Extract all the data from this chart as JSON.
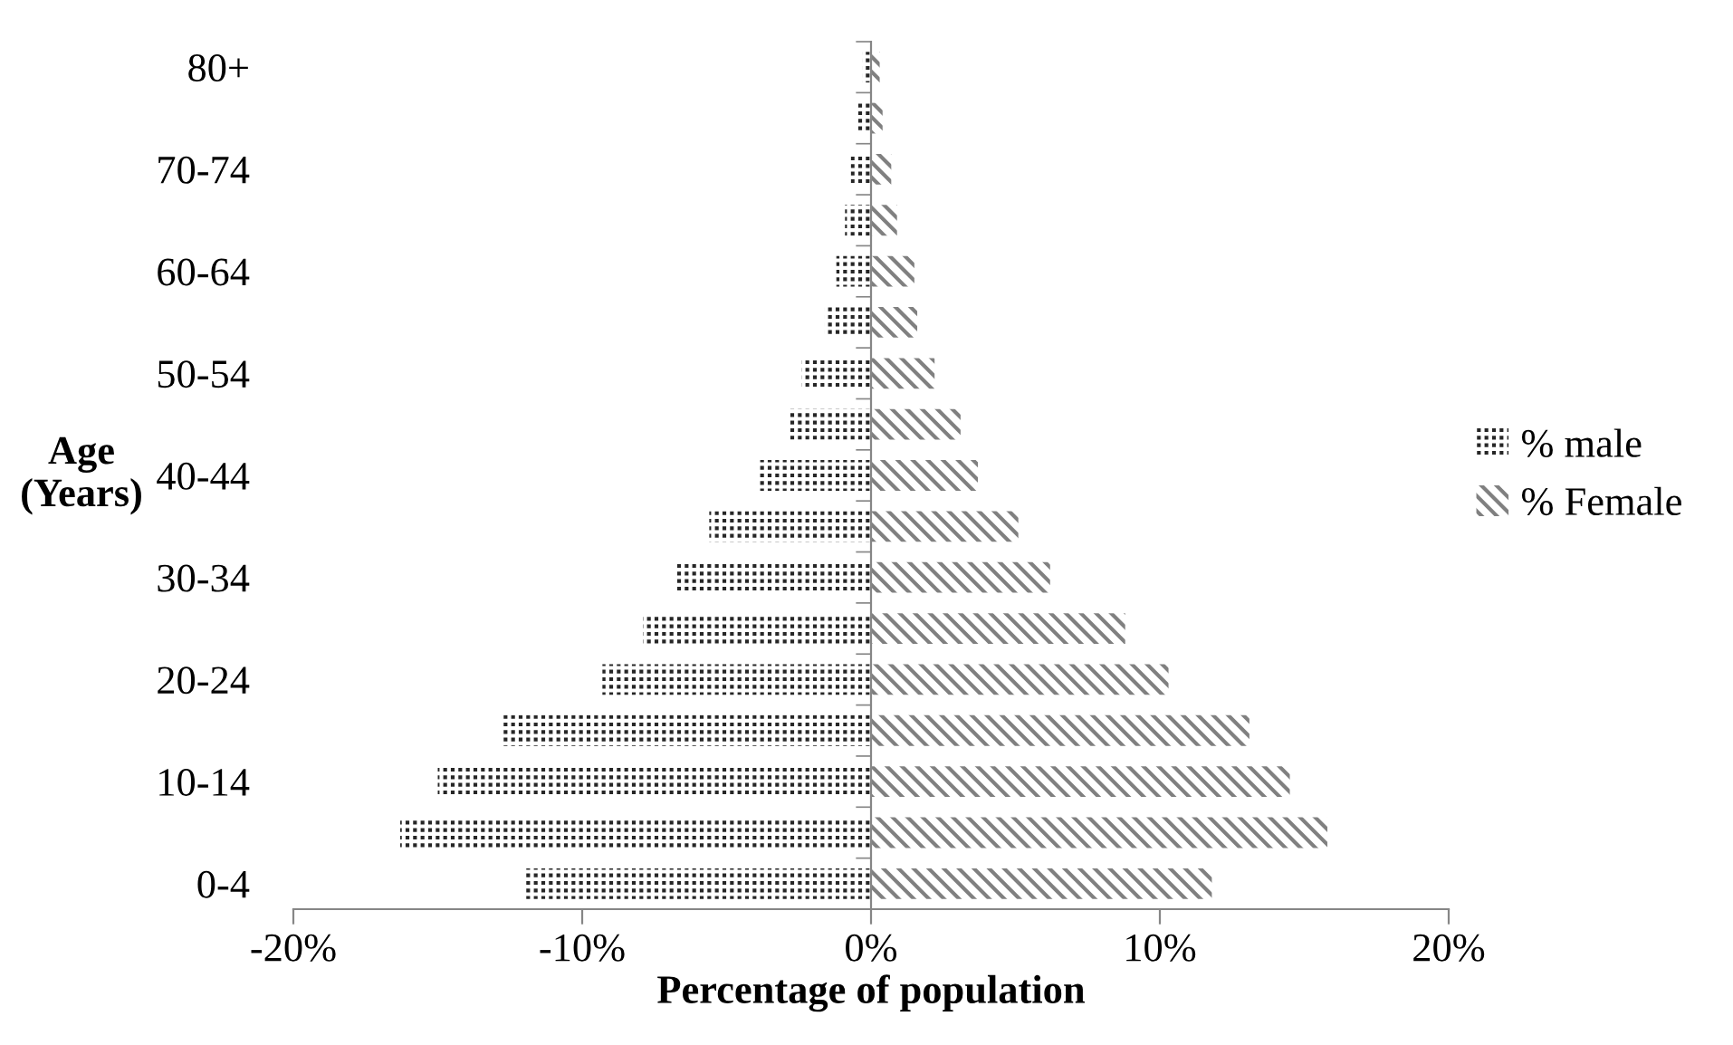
{
  "chart_data": {
    "type": "bar",
    "orientation": "horizontal",
    "categories": [
      "80+",
      null,
      "70-74",
      null,
      "60-64",
      null,
      "50-54",
      null,
      "40-44",
      null,
      "30-34",
      null,
      "20-24",
      null,
      "10-14",
      null,
      "0-4"
    ],
    "series": [
      {
        "name": "% male",
        "color": "#262626",
        "values": [
          -0.3,
          -0.5,
          -0.7,
          -0.9,
          -1.2,
          -1.6,
          -2.4,
          -2.9,
          -3.9,
          -5.6,
          -6.8,
          -7.9,
          -9.3,
          -12.8,
          -15.0,
          -16.3,
          -12.0
        ]
      },
      {
        "name": "% Female",
        "color": "#808080",
        "values": [
          0.3,
          0.4,
          0.7,
          0.9,
          1.5,
          1.6,
          2.2,
          3.1,
          3.7,
          5.1,
          6.2,
          8.8,
          10.3,
          13.1,
          14.5,
          15.8,
          11.8
        ]
      }
    ],
    "xlim": [
      -20,
      20
    ],
    "xticks": [
      {
        "value": -20,
        "label": "-20%"
      },
      {
        "value": -10,
        "label": "-10%"
      },
      {
        "value": 0,
        "label": "0%"
      },
      {
        "value": 10,
        "label": "10%"
      },
      {
        "value": 20,
        "label": "20%"
      }
    ],
    "xlabel": "Percentage of population",
    "ylabel": "Age\n(Years)",
    "stacked": true,
    "legend": "right"
  }
}
